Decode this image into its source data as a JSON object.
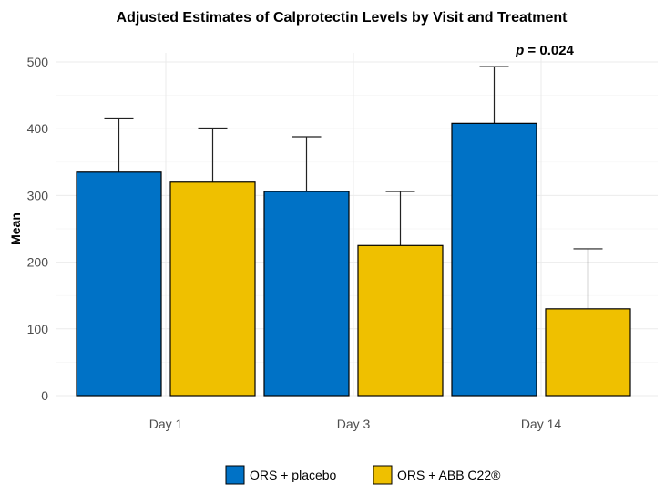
{
  "chart_data": {
    "type": "bar",
    "title": "Adjusted Estimates of Calprotectin Levels by Visit and Treatment",
    "xlabel": "",
    "ylabel": "Mean",
    "ylim": [
      0,
      500
    ],
    "yticks": [
      0,
      100,
      200,
      300,
      400,
      500
    ],
    "categories": [
      "Day 1",
      "Day 3",
      "Day 14"
    ],
    "series": [
      {
        "name": "ORS + placebo",
        "color": "#0072C6",
        "values": [
          335,
          306,
          408
        ],
        "error_upper": [
          416,
          388,
          493
        ]
      },
      {
        "name": "ORS + ABB C22®",
        "color": "#EFC000",
        "values": [
          320,
          225,
          130
        ],
        "error_upper": [
          401,
          306,
          220
        ]
      }
    ],
    "annotation": {
      "p_label": "p",
      "text": " = 0.024",
      "category": "Day 14"
    },
    "grid": true,
    "legend": "bottom"
  }
}
